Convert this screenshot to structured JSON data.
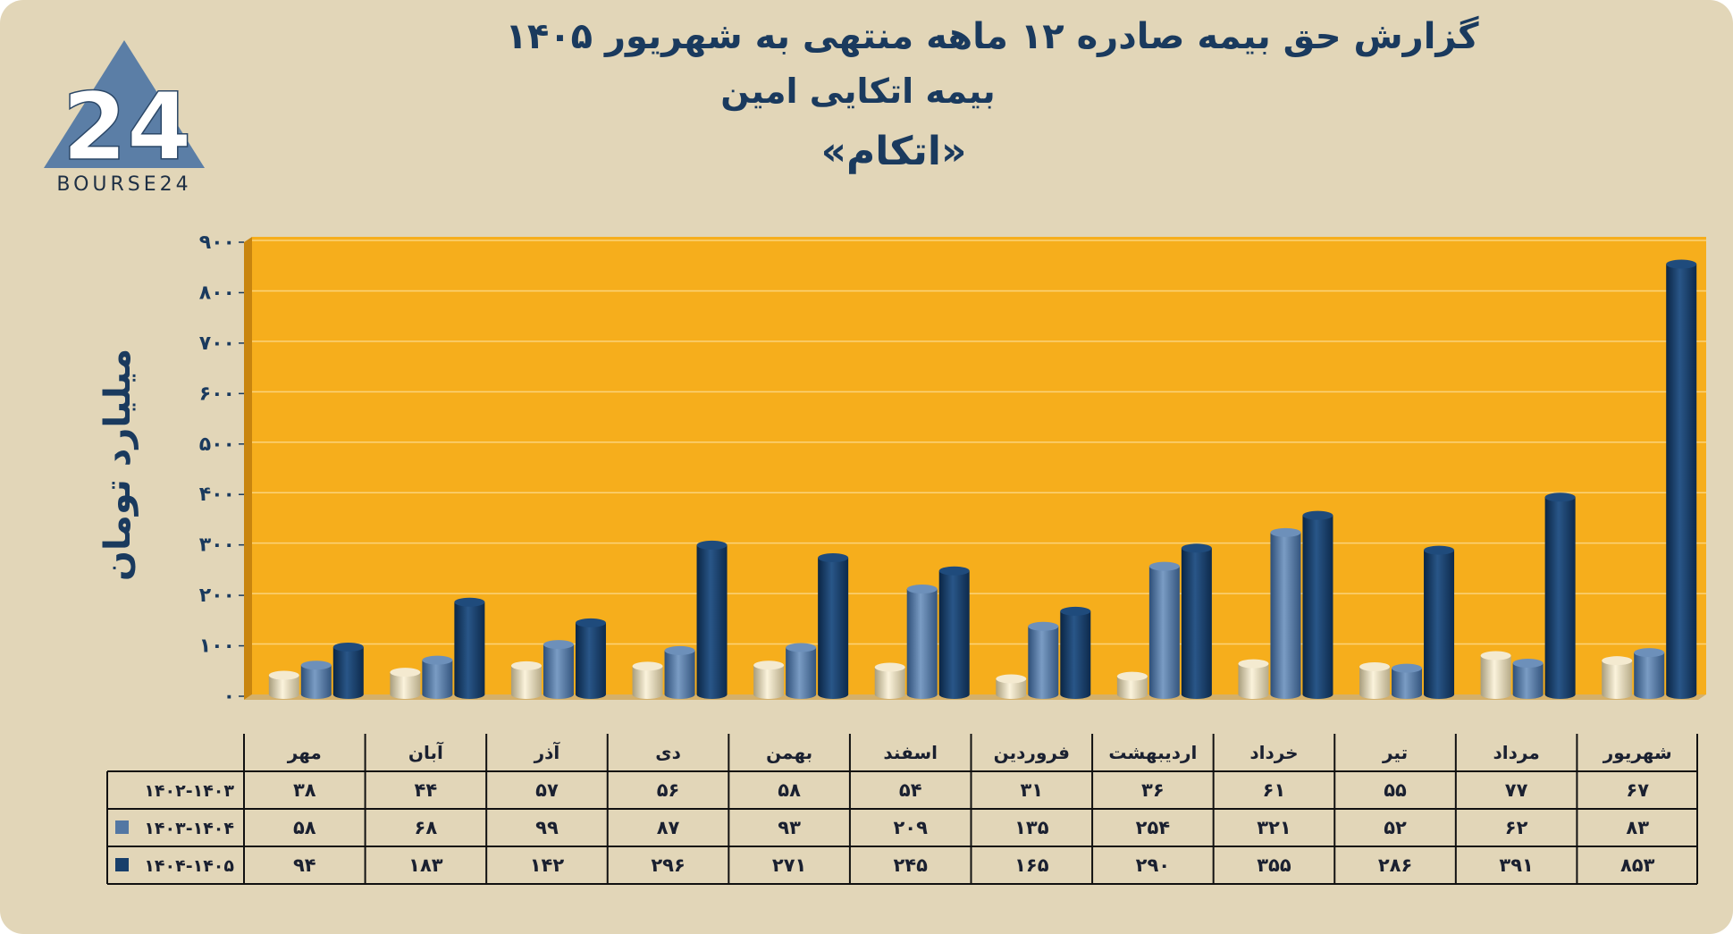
{
  "title": {
    "line1": "گزارش  حق بیمه صادره ۱۲ ماهه منتهی به شهریور ۱۴۰۵",
    "line2": "بیمه اتکایی امین",
    "line3": "«اتکام»"
  },
  "logo": {
    "text": "BOURSE24",
    "mark": "24"
  },
  "colors": {
    "background": "#e2d6b8",
    "plot": "#f6ae1c",
    "wall": "#c8850f",
    "series": [
      "#e9dfc0",
      "#5377a3",
      "#173e6a"
    ],
    "title": "#1a3a5e"
  },
  "chart_data": {
    "type": "bar",
    "ylabel": "میلیارد تومان",
    "ylim": [
      0,
      900
    ],
    "yticks": [
      "۰",
      "۱۰۰",
      "۲۰۰",
      "۳۰۰",
      "۴۰۰",
      "۵۰۰",
      "۶۰۰",
      "۷۰۰",
      "۸۰۰",
      "۹۰۰"
    ],
    "grid": true,
    "categories": [
      "مهر",
      "آبان",
      "آذر",
      "دی",
      "بهمن",
      "اسفند",
      "فروردین",
      "اردیبهشت",
      "خرداد",
      "تیر",
      "مرداد",
      "شهریور"
    ],
    "series": [
      {
        "name": "۱۴۰۲-۱۴۰۳",
        "values": [
          38,
          44,
          57,
          56,
          58,
          54,
          31,
          36,
          61,
          55,
          77,
          67
        ],
        "labels": [
          "۳۸",
          "۴۴",
          "۵۷",
          "۵۶",
          "۵۸",
          "۵۴",
          "۳۱",
          "۳۶",
          "۶۱",
          "۵۵",
          "۷۷",
          "۶۷"
        ]
      },
      {
        "name": "۱۴۰۳-۱۴۰۴",
        "values": [
          58,
          68,
          99,
          87,
          93,
          209,
          135,
          254,
          321,
          52,
          62,
          83
        ],
        "labels": [
          "۵۸",
          "۶۸",
          "۹۹",
          "۸۷",
          "۹۳",
          "۲۰۹",
          "۱۳۵",
          "۲۵۴",
          "۳۲۱",
          "۵۲",
          "۶۲",
          "۸۳"
        ]
      },
      {
        "name": "۱۴۰۴-۱۴۰۵",
        "values": [
          94,
          183,
          142,
          296,
          271,
          245,
          165,
          290,
          355,
          286,
          391,
          853
        ],
        "labels": [
          "۹۴",
          "۱۸۳",
          "۱۴۲",
          "۲۹۶",
          "۲۷۱",
          "۲۴۵",
          "۱۶۵",
          "۲۹۰",
          "۳۵۵",
          "۲۸۶",
          "۳۹۱",
          "۸۵۳"
        ]
      }
    ]
  }
}
